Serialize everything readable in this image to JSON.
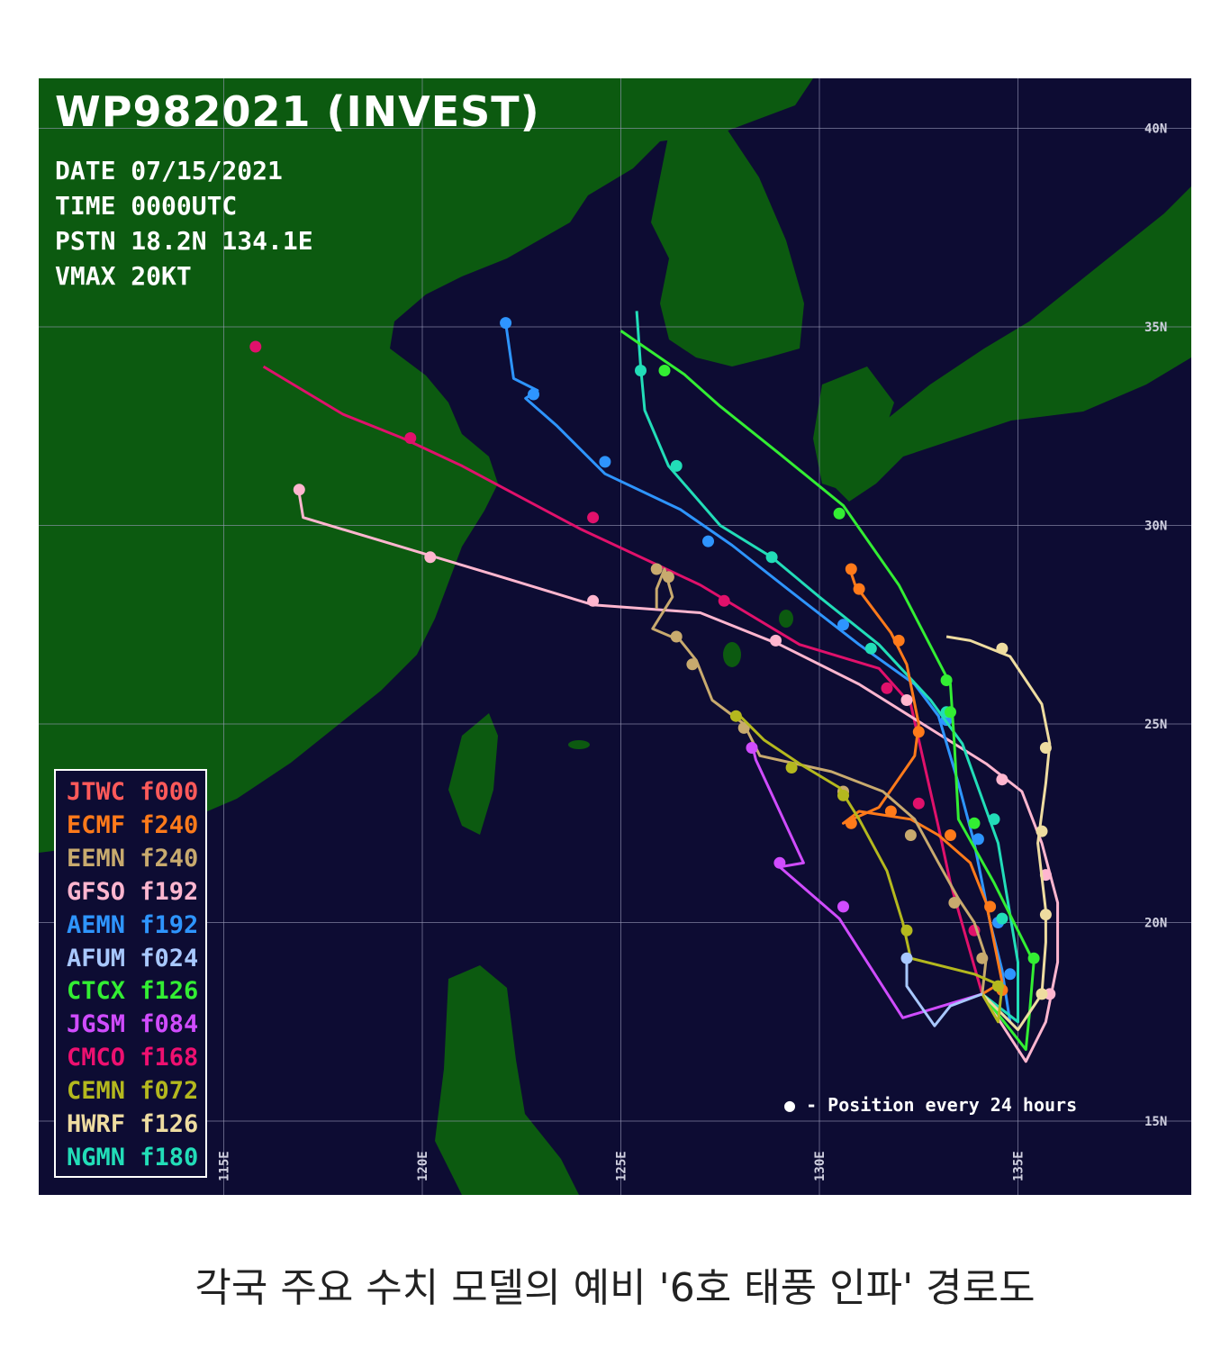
{
  "header": {
    "title": "WP982021 (INVEST)",
    "date": "DATE 07/15/2021",
    "time": "TIME 0000UTC",
    "position": "PSTN 18.2N 134.1E",
    "vmax": "VMAX 20KT"
  },
  "axes": {
    "lat_labels": [
      "40N",
      "35N",
      "30N",
      "25N",
      "20N",
      "15N"
    ],
    "lon_labels": [
      "115E",
      "120E",
      "125E",
      "130E",
      "135E"
    ]
  },
  "colors": {
    "ocean": "#0d0c33",
    "land": "#0c5a10",
    "grid": "#9a9ab8"
  },
  "legend": [
    {
      "model": "JTWC",
      "forecast": "f000",
      "color": "#ff5a5a"
    },
    {
      "model": "ECMF",
      "forecast": "f240",
      "color": "#ff7a1a"
    },
    {
      "model": "EEMN",
      "forecast": "f240",
      "color": "#c8aa6e"
    },
    {
      "model": "GFSO",
      "forecast": "f192",
      "color": "#ffb6cf"
    },
    {
      "model": "AEMN",
      "forecast": "f192",
      "color": "#2e95ff"
    },
    {
      "model": "AFUM",
      "forecast": "f024",
      "color": "#a8c8ff"
    },
    {
      "model": "CTCX",
      "forecast": "f126",
      "color": "#33ee33"
    },
    {
      "model": "JGSM",
      "forecast": "f084",
      "color": "#d04cff"
    },
    {
      "model": "CMCO",
      "forecast": "f168",
      "color": "#ee1070"
    },
    {
      "model": "CEMN",
      "forecast": "f072",
      "color": "#b4b81e"
    },
    {
      "model": "HWRF",
      "forecast": "f126",
      "color": "#eedca0"
    },
    {
      "model": "NGMN",
      "forecast": "f180",
      "color": "#22ddb8"
    }
  ],
  "tracks": [
    {
      "model": "CMCO",
      "color": "#e0116b",
      "points": [
        [
          134.1,
          18.2
        ],
        [
          133.3,
          21
        ],
        [
          133,
          22.4
        ],
        [
          132.3,
          25.5
        ],
        [
          131.5,
          26.4
        ],
        [
          129.5,
          27
        ],
        [
          127,
          28.5
        ],
        [
          124,
          29.9
        ],
        [
          121,
          31.5
        ],
        [
          119.5,
          32.2
        ],
        [
          118,
          32.8
        ],
        [
          116,
          34
        ]
      ],
      "dots": [
        [
          133.9,
          19.8
        ],
        [
          132.5,
          23
        ],
        [
          131.7,
          25.9
        ],
        [
          127.6,
          28.1
        ],
        [
          124.3,
          30.2
        ],
        [
          119.7,
          32.2
        ],
        [
          115.8,
          34.5
        ]
      ]
    },
    {
      "model": "GFSO",
      "color": "#ffb6cf",
      "points": [
        [
          134.1,
          18.2
        ],
        [
          135.2,
          16.5
        ],
        [
          135.7,
          17.5
        ],
        [
          136,
          19
        ],
        [
          136,
          20.5
        ],
        [
          135.6,
          22
        ],
        [
          135.1,
          23.3
        ],
        [
          134.2,
          24
        ],
        [
          132.6,
          25
        ],
        [
          131,
          26
        ],
        [
          129,
          27
        ],
        [
          127,
          27.8
        ],
        [
          124.3,
          28
        ],
        [
          122,
          28.7
        ],
        [
          119,
          29.6
        ],
        [
          117,
          30.2
        ],
        [
          116.9,
          30.8
        ]
      ],
      "dots": [
        [
          135.8,
          18.2
        ],
        [
          135.7,
          21.2
        ],
        [
          134.6,
          23.6
        ],
        [
          132.2,
          25.6
        ],
        [
          128.9,
          27.1
        ],
        [
          124.3,
          28.1
        ],
        [
          120.2,
          29.2
        ],
        [
          116.9,
          30.9
        ]
      ]
    },
    {
      "model": "AEMN",
      "color": "#2e95ff",
      "points": [
        [
          134.1,
          18.2
        ],
        [
          134.8,
          17.5
        ],
        [
          134.6,
          18.8
        ],
        [
          134.3,
          20
        ],
        [
          133.9,
          22
        ],
        [
          133.5,
          23.5
        ],
        [
          133,
          25.2
        ],
        [
          132.4,
          26
        ],
        [
          131,
          27
        ],
        [
          129.2,
          28.4
        ],
        [
          127.8,
          29.5
        ],
        [
          126.5,
          30.4
        ],
        [
          124.6,
          31.3
        ],
        [
          123.4,
          32.5
        ],
        [
          122.6,
          33.2
        ],
        [
          122.9,
          33.4
        ],
        [
          122.3,
          33.7
        ],
        [
          122.1,
          35.1
        ]
      ],
      "dots": [
        [
          134.8,
          18.7
        ],
        [
          134.5,
          20
        ],
        [
          134,
          22.1
        ],
        [
          133.2,
          25.1
        ],
        [
          130.6,
          27.5
        ],
        [
          127.2,
          29.6
        ],
        [
          124.6,
          31.6
        ],
        [
          122.8,
          33.3
        ],
        [
          122.1,
          35.1
        ]
      ]
    },
    {
      "model": "NGMN",
      "color": "#22ddb8",
      "points": [
        [
          134.1,
          18.2
        ],
        [
          135,
          17.5
        ],
        [
          135,
          19
        ],
        [
          134.5,
          22
        ],
        [
          133.6,
          24.5
        ],
        [
          132.8,
          25.6
        ],
        [
          131.5,
          27
        ],
        [
          130,
          28.2
        ],
        [
          128.8,
          29.2
        ],
        [
          127.5,
          30
        ],
        [
          126.2,
          31.5
        ],
        [
          125.6,
          32.9
        ],
        [
          125.5,
          34
        ],
        [
          125.4,
          35.4
        ]
      ],
      "dots": [
        [
          134.6,
          20.1
        ],
        [
          134.4,
          22.6
        ],
        [
          133.2,
          25.3
        ],
        [
          131.3,
          26.9
        ],
        [
          128.8,
          29.2
        ],
        [
          126.4,
          31.5
        ],
        [
          125.5,
          33.9
        ]
      ]
    },
    {
      "model": "CTCX",
      "color": "#33ee33",
      "points": [
        [
          134.1,
          18.2
        ],
        [
          135.2,
          16.8
        ],
        [
          135.3,
          17.8
        ],
        [
          135.4,
          19
        ],
        [
          134.4,
          21
        ],
        [
          133.5,
          22.6
        ],
        [
          133.4,
          24.5
        ],
        [
          133.3,
          26
        ],
        [
          132,
          28.5
        ],
        [
          130.6,
          30.5
        ],
        [
          129,
          31.8
        ],
        [
          127.5,
          33
        ],
        [
          126.6,
          33.8
        ],
        [
          125,
          34.9
        ]
      ],
      "dots": [
        [
          135.4,
          19.1
        ],
        [
          133.9,
          22.5
        ],
        [
          133.3,
          25.3
        ],
        [
          133.2,
          26.1
        ],
        [
          130.5,
          30.3
        ],
        [
          126.1,
          33.9
        ]
      ]
    },
    {
      "model": "ECMF",
      "color": "#ff7a1a",
      "points": [
        [
          134.1,
          18.2
        ],
        [
          134.6,
          18.5
        ],
        [
          134.2,
          20.5
        ],
        [
          133.8,
          21.5
        ],
        [
          133,
          22.2
        ],
        [
          132.3,
          22.6
        ],
        [
          131,
          22.8
        ],
        [
          130.6,
          22.5
        ],
        [
          131.5,
          22.9
        ],
        [
          132.4,
          24.2
        ],
        [
          132.5,
          25
        ],
        [
          132.2,
          26.5
        ],
        [
          131.8,
          27.3
        ],
        [
          131.2,
          28.1
        ],
        [
          130.9,
          28.5
        ],
        [
          130.8,
          28.8
        ]
      ],
      "dots": [
        [
          134.6,
          18.3
        ],
        [
          134.3,
          20.4
        ],
        [
          133.3,
          22.2
        ],
        [
          131.8,
          22.8
        ],
        [
          130.8,
          22.5
        ],
        [
          132.5,
          24.8
        ],
        [
          132.0,
          27.1
        ],
        [
          131.0,
          28.4
        ],
        [
          130.8,
          28.9
        ]
      ]
    },
    {
      "model": "EEMN",
      "color": "#c8aa6e",
      "points": [
        [
          134.1,
          18.2
        ],
        [
          134.2,
          19.1
        ],
        [
          133.9,
          20
        ],
        [
          133.5,
          20.6
        ],
        [
          133,
          21.5
        ],
        [
          132.4,
          22.6
        ],
        [
          131.6,
          23.3
        ],
        [
          130.3,
          23.8
        ],
        [
          129.4,
          24
        ],
        [
          128.5,
          24.2
        ],
        [
          128.1,
          25
        ],
        [
          127.3,
          25.6
        ],
        [
          126.9,
          26.6
        ],
        [
          126.5,
          27.1
        ],
        [
          125.8,
          27.4
        ],
        [
          126.3,
          28.2
        ],
        [
          126.1,
          28.9
        ],
        [
          125.9,
          28.4
        ],
        [
          125.9,
          27.9
        ]
      ],
      "dots": [
        [
          134.1,
          19.1
        ],
        [
          133.4,
          20.5
        ],
        [
          132.3,
          22.2
        ],
        [
          130.6,
          23.3
        ],
        [
          128.1,
          24.9
        ],
        [
          126.8,
          26.5
        ],
        [
          126.4,
          27.2
        ],
        [
          126.2,
          28.7
        ],
        [
          125.9,
          28.9
        ]
      ]
    },
    {
      "model": "HWRF",
      "color": "#eedca0",
      "points": [
        [
          134.1,
          18.2
        ],
        [
          135,
          17.3
        ],
        [
          135.6,
          18.2
        ],
        [
          135.7,
          19.5
        ],
        [
          135.7,
          20.3
        ],
        [
          135.5,
          22
        ],
        [
          135.7,
          23.5
        ],
        [
          135.8,
          24.5
        ],
        [
          135.6,
          25.5
        ],
        [
          134.8,
          26.7
        ],
        [
          133.8,
          27.1
        ],
        [
          133.2,
          27.2
        ]
      ],
      "dots": [
        [
          135.6,
          18.2
        ],
        [
          135.7,
          20.2
        ],
        [
          135.6,
          22.3
        ],
        [
          135.7,
          24.4
        ],
        [
          134.6,
          26.9
        ]
      ]
    },
    {
      "model": "CEMN",
      "color": "#b4b81e",
      "points": [
        [
          134.1,
          18.2
        ],
        [
          134.5,
          17.5
        ],
        [
          134.6,
          18.4
        ],
        [
          133.9,
          18.7
        ],
        [
          132.3,
          19.1
        ],
        [
          132.1,
          20
        ],
        [
          131.7,
          21.3
        ],
        [
          131,
          22.6
        ],
        [
          130.5,
          23.4
        ],
        [
          129.5,
          24
        ],
        [
          128.6,
          24.6
        ],
        [
          127.9,
          25.3
        ]
      ],
      "dots": [
        [
          134.5,
          18.4
        ],
        [
          132.2,
          19.8
        ],
        [
          130.6,
          23.2
        ],
        [
          129.3,
          23.9
        ],
        [
          127.9,
          25.2
        ]
      ]
    },
    {
      "model": "JGSM",
      "color": "#d04cff",
      "points": [
        [
          134.1,
          18.2
        ],
        [
          132.1,
          17.6
        ],
        [
          130.5,
          20.1
        ],
        [
          129,
          21.4
        ],
        [
          129.6,
          21.5
        ],
        [
          128.4,
          24.1
        ],
        [
          128.3,
          24.5
        ]
      ],
      "dots": [
        [
          130.6,
          20.4
        ],
        [
          129.0,
          21.5
        ],
        [
          128.3,
          24.4
        ]
      ]
    },
    {
      "model": "AFUM",
      "color": "#a8c8ff",
      "points": [
        [
          134.1,
          18.2
        ],
        [
          133.3,
          17.9
        ],
        [
          132.9,
          17.4
        ],
        [
          132.2,
          18.4
        ],
        [
          132.2,
          19
        ]
      ],
      "dots": [
        [
          132.2,
          19.1
        ]
      ]
    }
  ],
  "point_legend": "- Position every 24 hours",
  "caption": "각국 주요 수치 모델의 예비 '6호 태풍 인파' 경로도"
}
